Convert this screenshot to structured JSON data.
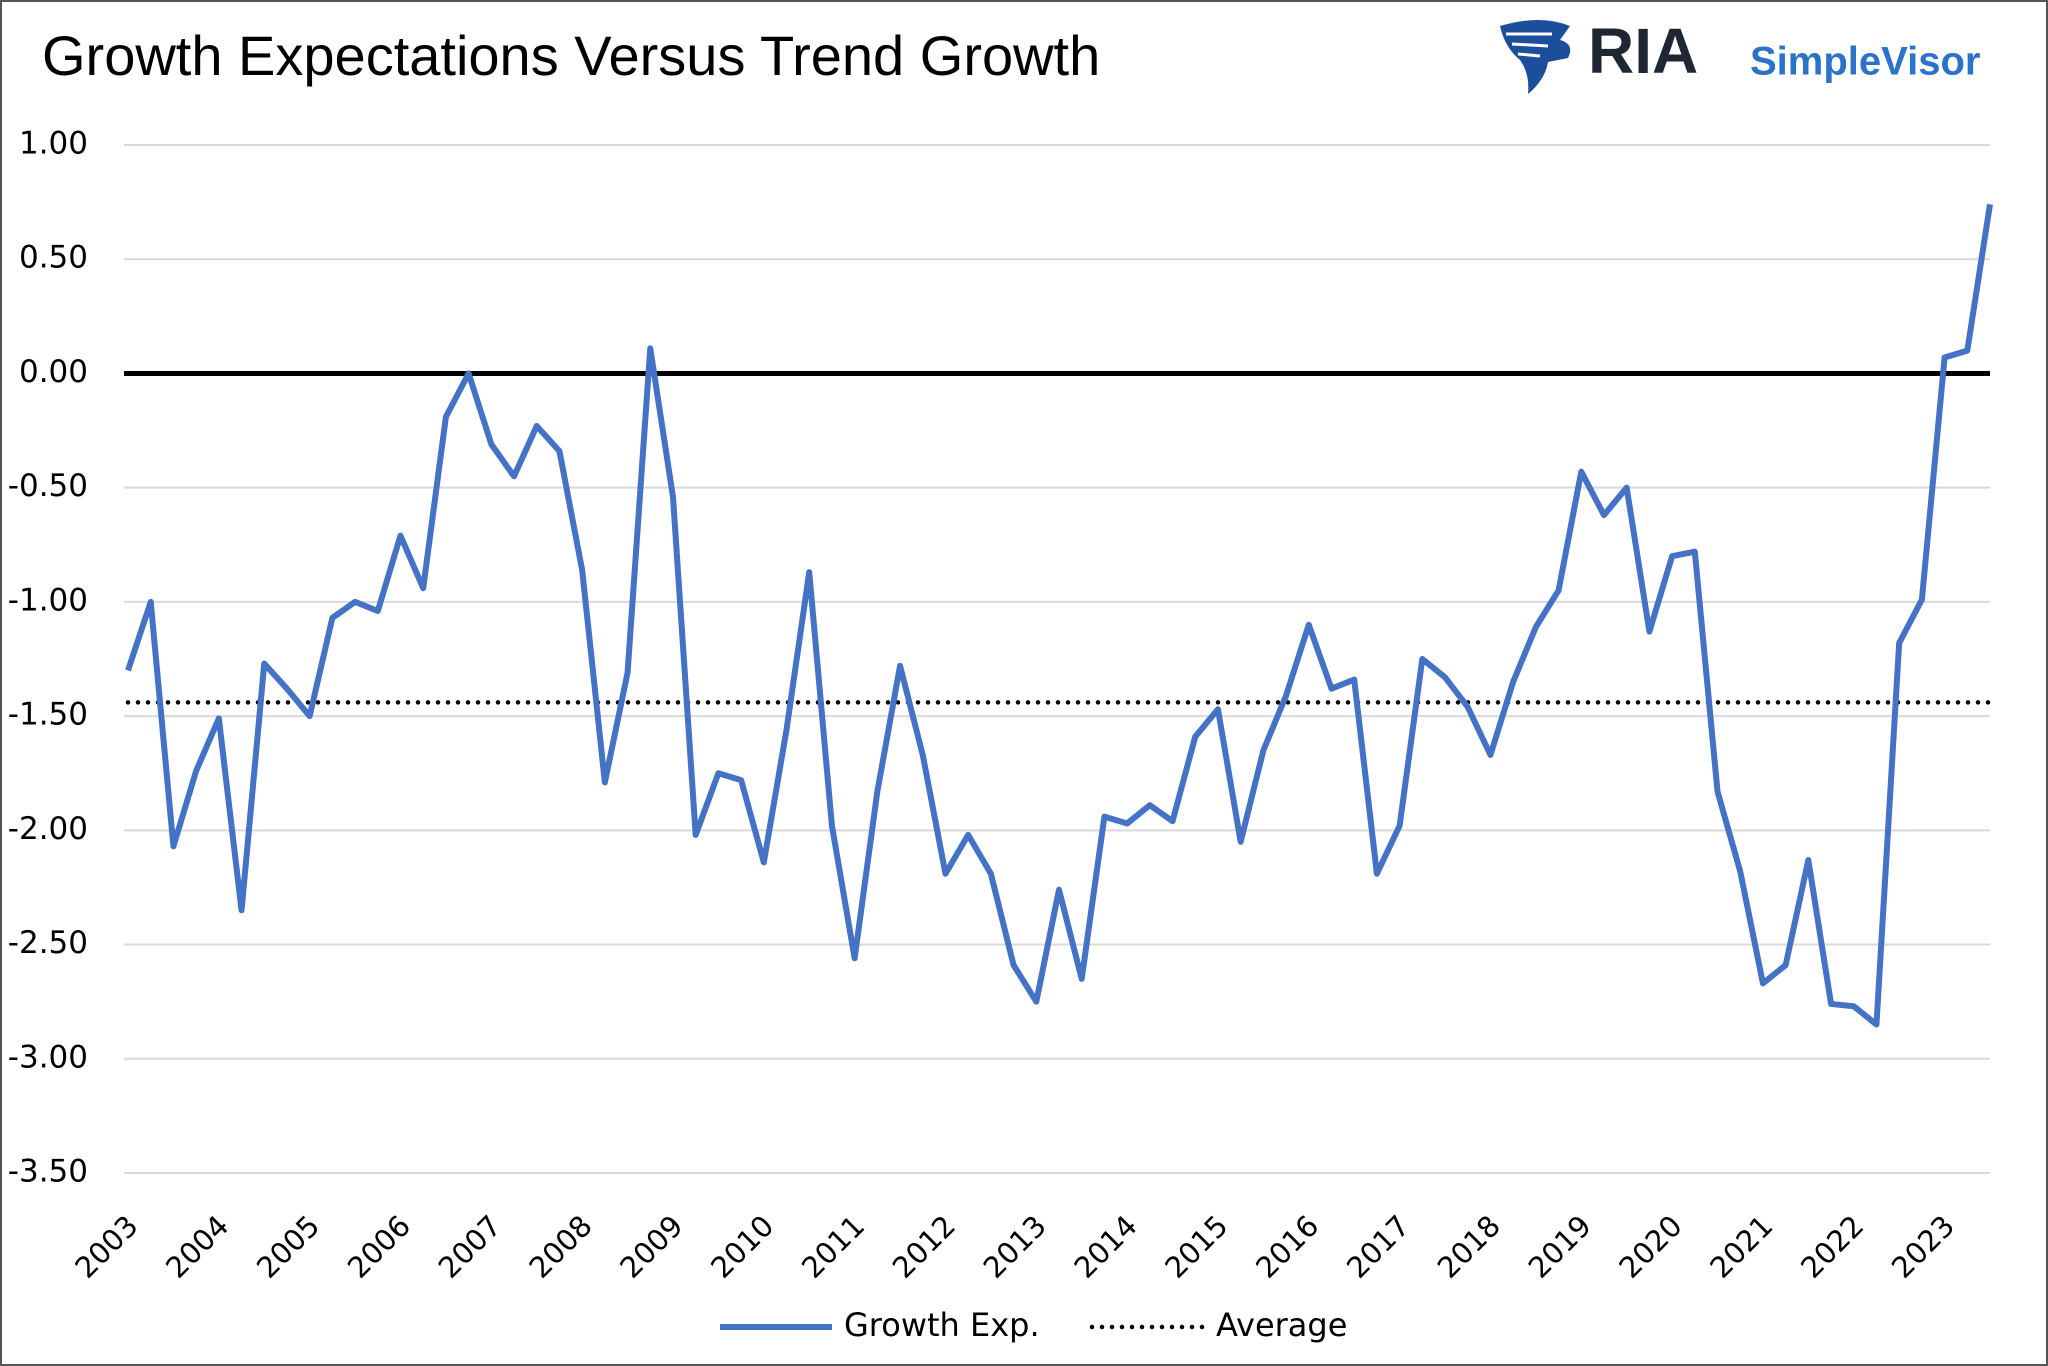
{
  "chart_data": {
    "type": "line",
    "title": "Growth Expectations Versus Trend Growth",
    "logo": {
      "text": "RIA",
      "subtext": "SimpleVisor"
    },
    "categories": [
      "2003",
      null,
      null,
      null,
      "2004",
      null,
      null,
      null,
      "2005",
      null,
      null,
      null,
      "2006",
      null,
      null,
      null,
      "2007",
      null,
      null,
      null,
      "2008",
      null,
      null,
      null,
      "2009",
      null,
      null,
      null,
      "2010",
      null,
      null,
      null,
      "2011",
      null,
      null,
      null,
      "2012",
      null,
      null,
      null,
      "2013",
      null,
      null,
      null,
      "2014",
      null,
      null,
      null,
      "2015",
      null,
      null,
      null,
      "2016",
      null,
      null,
      null,
      "2017",
      null,
      null,
      null,
      "2018",
      null,
      null,
      null,
      "2019",
      null,
      null,
      null,
      "2020",
      null,
      null,
      null,
      "2021",
      null,
      null,
      null,
      "2022",
      null,
      null,
      null,
      "2023",
      null,
      null
    ],
    "series": [
      {
        "name": "Growth Exp.",
        "color": "#4472c4",
        "values": [
          -1.3,
          -1.0,
          -2.07,
          -1.74,
          -1.51,
          -2.35,
          -1.27,
          -1.38,
          -1.5,
          -1.07,
          -1.0,
          -1.04,
          -0.71,
          -0.94,
          -0.19,
          0.0,
          -0.31,
          -0.45,
          -0.23,
          -0.34,
          -0.86,
          -1.79,
          -1.31,
          0.11,
          -0.54,
          -2.02,
          -1.75,
          -1.78,
          -2.14,
          -1.56,
          -0.87,
          -1.98,
          -2.56,
          -1.83,
          -1.28,
          -1.67,
          -2.19,
          -2.02,
          -2.19,
          -2.59,
          -2.75,
          -2.26,
          -2.65,
          -1.94,
          -1.97,
          -1.89,
          -1.96,
          -1.59,
          -1.47,
          -2.05,
          -1.65,
          -1.41,
          -1.1,
          -1.38,
          -1.34,
          -2.19,
          -1.98,
          -1.25,
          -1.33,
          -1.46,
          -1.67,
          -1.35,
          -1.11,
          -0.95,
          -0.43,
          -0.62,
          -0.5,
          -1.13,
          -0.8,
          -0.78,
          -1.83,
          -2.18,
          -2.67,
          -2.59,
          -2.13,
          -2.76,
          -2.77,
          -2.85,
          -1.18,
          -0.99,
          0.07,
          0.1,
          0.74
        ]
      }
    ],
    "reference_lines": [
      {
        "name": "Average",
        "value": -1.44,
        "color": "#000000",
        "style": "dotted"
      }
    ],
    "zero_line": true,
    "ylim": [
      -3.5,
      1.0
    ],
    "yticks": [
      {
        "value": -3.5,
        "label": "-3.50"
      },
      {
        "value": -3.0,
        "label": "-3.00"
      },
      {
        "value": -2.5,
        "label": "-2.50"
      },
      {
        "value": -2.0,
        "label": "-2.00"
      },
      {
        "value": -1.5,
        "label": "-1.50"
      },
      {
        "value": -1.0,
        "label": "-1.00"
      },
      {
        "value": -0.5,
        "label": "-0.50"
      },
      {
        "value": 0.0,
        "label": "0.00"
      },
      {
        "value": 0.5,
        "label": "0.50"
      },
      {
        "value": 1.0,
        "label": "1.00"
      }
    ],
    "grid": true,
    "legend": "bottom"
  }
}
